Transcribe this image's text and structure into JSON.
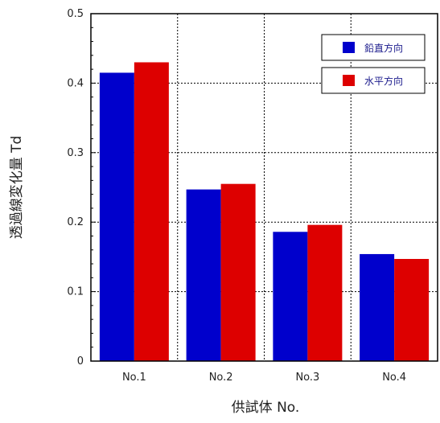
{
  "chart_data": {
    "type": "bar",
    "categories": [
      "No.1",
      "No.2",
      "No.3",
      "No.4"
    ],
    "series": [
      {
        "name": "鉛直方向",
        "color": "#0000cc",
        "values": [
          0.415,
          0.247,
          0.186,
          0.154
        ]
      },
      {
        "name": "水平方向",
        "color": "#dd0000",
        "values": [
          0.43,
          0.255,
          0.196,
          0.147
        ]
      }
    ],
    "xlabel": "供試体 No.",
    "ylabel": "透過線変化量 Td",
    "ylim": [
      0,
      0.5
    ],
    "yticks": [
      "0",
      "0.1",
      "0.2",
      "0.3",
      "0.4",
      "0.5"
    ],
    "grid": true,
    "legend_position": "top-right"
  }
}
